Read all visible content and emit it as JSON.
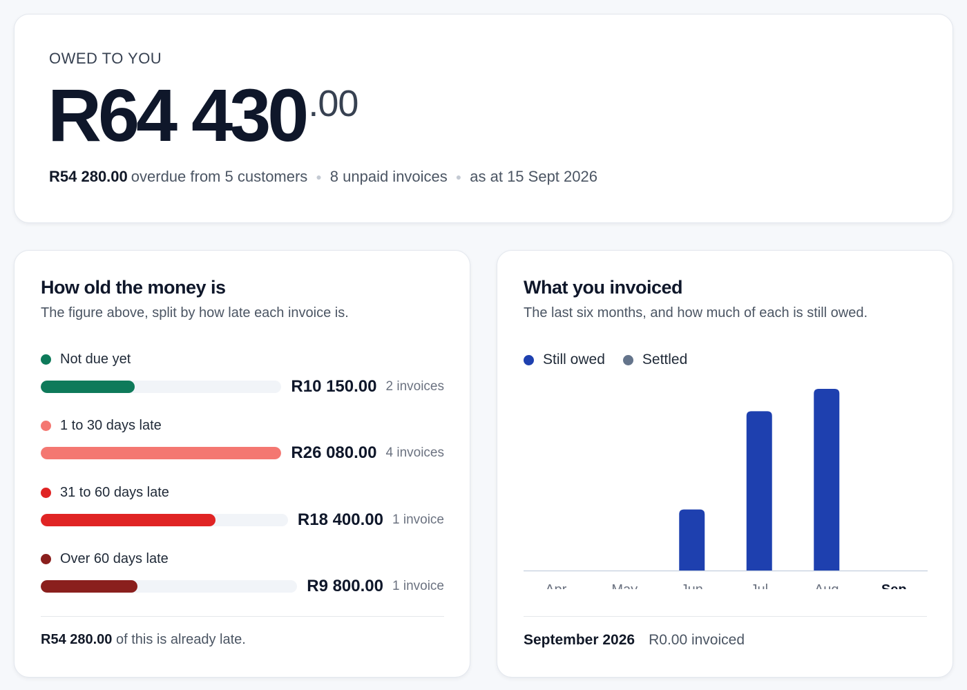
{
  "summary": {
    "eyebrow": "OWED TO YOU",
    "total_main": "R64 430",
    "total_cents": ".00",
    "overdue_amount": "R54 280.00",
    "overdue_text": "overdue from 5 customers",
    "unpaid": "8 unpaid invoices",
    "as_at": "as at 15 Sept 2026"
  },
  "aging": {
    "title": "How old the money is",
    "subtitle": "The figure above, split by how late each invoice is.",
    "buckets": [
      {
        "label": "Not due yet",
        "amount": "R10 150.00",
        "count": "2 invoices",
        "fraction": 0.389,
        "color": "#0e7a5a"
      },
      {
        "label": "1 to 30 days late",
        "amount": "R26 080.00",
        "count": "4 invoices",
        "fraction": 1.0,
        "color": "#f47771"
      },
      {
        "label": "31 to 60 days late",
        "amount": "R18 400.00",
        "count": "1 invoice",
        "fraction": 0.706,
        "color": "#e02424"
      },
      {
        "label": "Over 60 days late",
        "amount": "R9 800.00",
        "count": "1 invoice",
        "fraction": 0.376,
        "color": "#8a1f1d"
      }
    ],
    "footnote_amount": "R54 280.00",
    "footnote_text": "of this is already late."
  },
  "invoiced": {
    "title": "What you invoiced",
    "subtitle": "The last six months, and how much of each is still owed.",
    "legend": [
      {
        "label": "Still owed",
        "color": "#1e40af"
      },
      {
        "label": "Settled",
        "color": "#64748b"
      }
    ],
    "footer_month": "September 2026",
    "footer_value": "R0.00 invoiced"
  },
  "chart_data": {
    "type": "bar",
    "categories": [
      "Apr",
      "May",
      "Jun",
      "Jul",
      "Aug",
      "Sep"
    ],
    "highlight_category": "Sep",
    "series": [
      {
        "name": "Still owed",
        "values": [
          0,
          0,
          9000,
          23500,
          26800,
          0
        ]
      },
      {
        "name": "Settled",
        "values": [
          0,
          0,
          0,
          0,
          0,
          0
        ]
      }
    ],
    "ylim": [
      0,
      27000
    ],
    "grid": false,
    "legend": "top-left"
  }
}
